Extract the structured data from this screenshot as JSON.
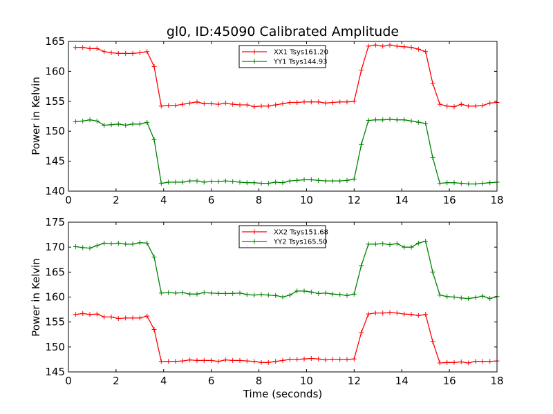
{
  "chart_data": [
    {
      "type": "line",
      "title": "gl0, ID:45090 Calibrated Amplitude",
      "xlabel": "",
      "ylabel": "Power in Kelvin",
      "xlim": [
        0,
        18
      ],
      "ylim": [
        140,
        165
      ],
      "xticks": [
        "0",
        "2",
        "4",
        "6",
        "8",
        "10",
        "12",
        "14",
        "16",
        "18"
      ],
      "yticks": [
        "140",
        "145",
        "150",
        "155",
        "160",
        "165"
      ],
      "legend_position": "top-center",
      "x": [
        0.3,
        0.6,
        0.9,
        1.2,
        1.5,
        1.8,
        2.1,
        2.4,
        2.7,
        3.0,
        3.3,
        3.6,
        3.9,
        4.2,
        4.5,
        4.8,
        5.1,
        5.4,
        5.7,
        6.0,
        6.3,
        6.6,
        6.9,
        7.2,
        7.5,
        7.8,
        8.1,
        8.4,
        8.7,
        9.0,
        9.3,
        9.6,
        9.9,
        10.2,
        10.5,
        10.8,
        11.1,
        11.4,
        11.7,
        12.0,
        12.3,
        12.6,
        12.9,
        13.2,
        13.5,
        13.8,
        14.1,
        14.4,
        14.7,
        15.0,
        15.3,
        15.6,
        15.9,
        16.2,
        16.5,
        16.8,
        17.1,
        17.4,
        17.7,
        18.0
      ],
      "series": [
        {
          "name": "XX1 Tsys161.20",
          "color": "#ff0000",
          "values": [
            164.0,
            164.0,
            163.8,
            163.8,
            163.3,
            163.1,
            163.0,
            163.0,
            163.0,
            163.1,
            163.3,
            160.8,
            154.2,
            154.3,
            154.3,
            154.5,
            154.7,
            154.9,
            154.6,
            154.6,
            154.5,
            154.7,
            154.5,
            154.4,
            154.4,
            154.1,
            154.2,
            154.2,
            154.4,
            154.6,
            154.8,
            154.8,
            154.9,
            154.9,
            154.9,
            154.7,
            154.8,
            154.9,
            154.9,
            155.0,
            160.2,
            164.2,
            164.4,
            164.2,
            164.4,
            164.2,
            164.1,
            164.0,
            163.7,
            163.3,
            158.0,
            154.5,
            154.2,
            154.1,
            154.5,
            154.2,
            154.2,
            154.3,
            154.7,
            154.8
          ]
        },
        {
          "name": "YY1 Tsys144.93",
          "color": "#008000",
          "values": [
            151.6,
            151.7,
            151.9,
            151.7,
            151.0,
            151.1,
            151.2,
            151.0,
            151.2,
            151.2,
            151.5,
            148.6,
            141.3,
            141.5,
            141.5,
            141.5,
            141.7,
            141.7,
            141.5,
            141.6,
            141.6,
            141.7,
            141.6,
            141.5,
            141.4,
            141.4,
            141.3,
            141.3,
            141.5,
            141.4,
            141.7,
            141.8,
            141.9,
            141.9,
            141.8,
            141.7,
            141.7,
            141.7,
            141.8,
            142.0,
            147.8,
            151.8,
            151.9,
            151.9,
            152.0,
            151.9,
            151.9,
            151.7,
            151.5,
            151.3,
            145.6,
            141.3,
            141.4,
            141.4,
            141.3,
            141.2,
            141.2,
            141.3,
            141.4,
            141.5
          ]
        }
      ]
    },
    {
      "type": "line",
      "title": "",
      "xlabel": "Time (seconds)",
      "ylabel": "Power in Kelvin",
      "xlim": [
        0,
        18
      ],
      "ylim": [
        145,
        175
      ],
      "xticks": [
        "0",
        "2",
        "4",
        "6",
        "8",
        "10",
        "12",
        "14",
        "16",
        "18"
      ],
      "yticks": [
        "145",
        "150",
        "155",
        "160",
        "165",
        "170",
        "175"
      ],
      "legend_position": "top-center",
      "x": [
        0.3,
        0.6,
        0.9,
        1.2,
        1.5,
        1.8,
        2.1,
        2.4,
        2.7,
        3.0,
        3.3,
        3.6,
        3.9,
        4.2,
        4.5,
        4.8,
        5.1,
        5.4,
        5.7,
        6.0,
        6.3,
        6.6,
        6.9,
        7.2,
        7.5,
        7.8,
        8.1,
        8.4,
        8.7,
        9.0,
        9.3,
        9.6,
        9.9,
        10.2,
        10.5,
        10.8,
        11.1,
        11.4,
        11.7,
        12.0,
        12.3,
        12.6,
        12.9,
        13.2,
        13.5,
        13.8,
        14.1,
        14.4,
        14.7,
        15.0,
        15.3,
        15.6,
        15.9,
        16.2,
        16.5,
        16.8,
        17.1,
        17.4,
        17.7,
        18.0
      ],
      "series": [
        {
          "name": "XX2 Tsys151.68",
          "color": "#ff0000",
          "values": [
            156.5,
            156.7,
            156.5,
            156.6,
            156.0,
            156.0,
            155.7,
            155.8,
            155.8,
            155.8,
            156.2,
            153.5,
            147.1,
            147.1,
            147.1,
            147.2,
            147.4,
            147.3,
            147.3,
            147.3,
            147.1,
            147.4,
            147.3,
            147.3,
            147.2,
            147.1,
            146.9,
            146.9,
            147.1,
            147.3,
            147.5,
            147.5,
            147.6,
            147.7,
            147.6,
            147.4,
            147.5,
            147.5,
            147.5,
            147.6,
            152.9,
            156.6,
            156.8,
            156.8,
            156.9,
            156.8,
            156.6,
            156.5,
            156.3,
            156.5,
            151.1,
            146.8,
            146.9,
            146.9,
            147.0,
            146.8,
            147.1,
            147.1,
            147.1,
            147.2
          ]
        },
        {
          "name": "YY2 Tsys165.50",
          "color": "#008000",
          "values": [
            170.1,
            169.9,
            169.8,
            170.3,
            170.8,
            170.7,
            170.8,
            170.6,
            170.6,
            170.9,
            170.8,
            168.0,
            160.8,
            160.9,
            160.8,
            160.9,
            160.6,
            160.6,
            160.9,
            160.8,
            160.7,
            160.7,
            160.7,
            160.8,
            160.5,
            160.4,
            160.5,
            160.4,
            160.3,
            160.0,
            160.4,
            161.2,
            161.2,
            161.0,
            160.7,
            160.8,
            160.6,
            160.5,
            160.3,
            160.6,
            166.3,
            170.6,
            170.6,
            170.7,
            170.5,
            170.7,
            170.0,
            170.0,
            170.8,
            171.2,
            165.0,
            160.4,
            160.1,
            160.0,
            159.8,
            159.7,
            159.9,
            160.2,
            159.7,
            160.1
          ]
        }
      ]
    }
  ]
}
